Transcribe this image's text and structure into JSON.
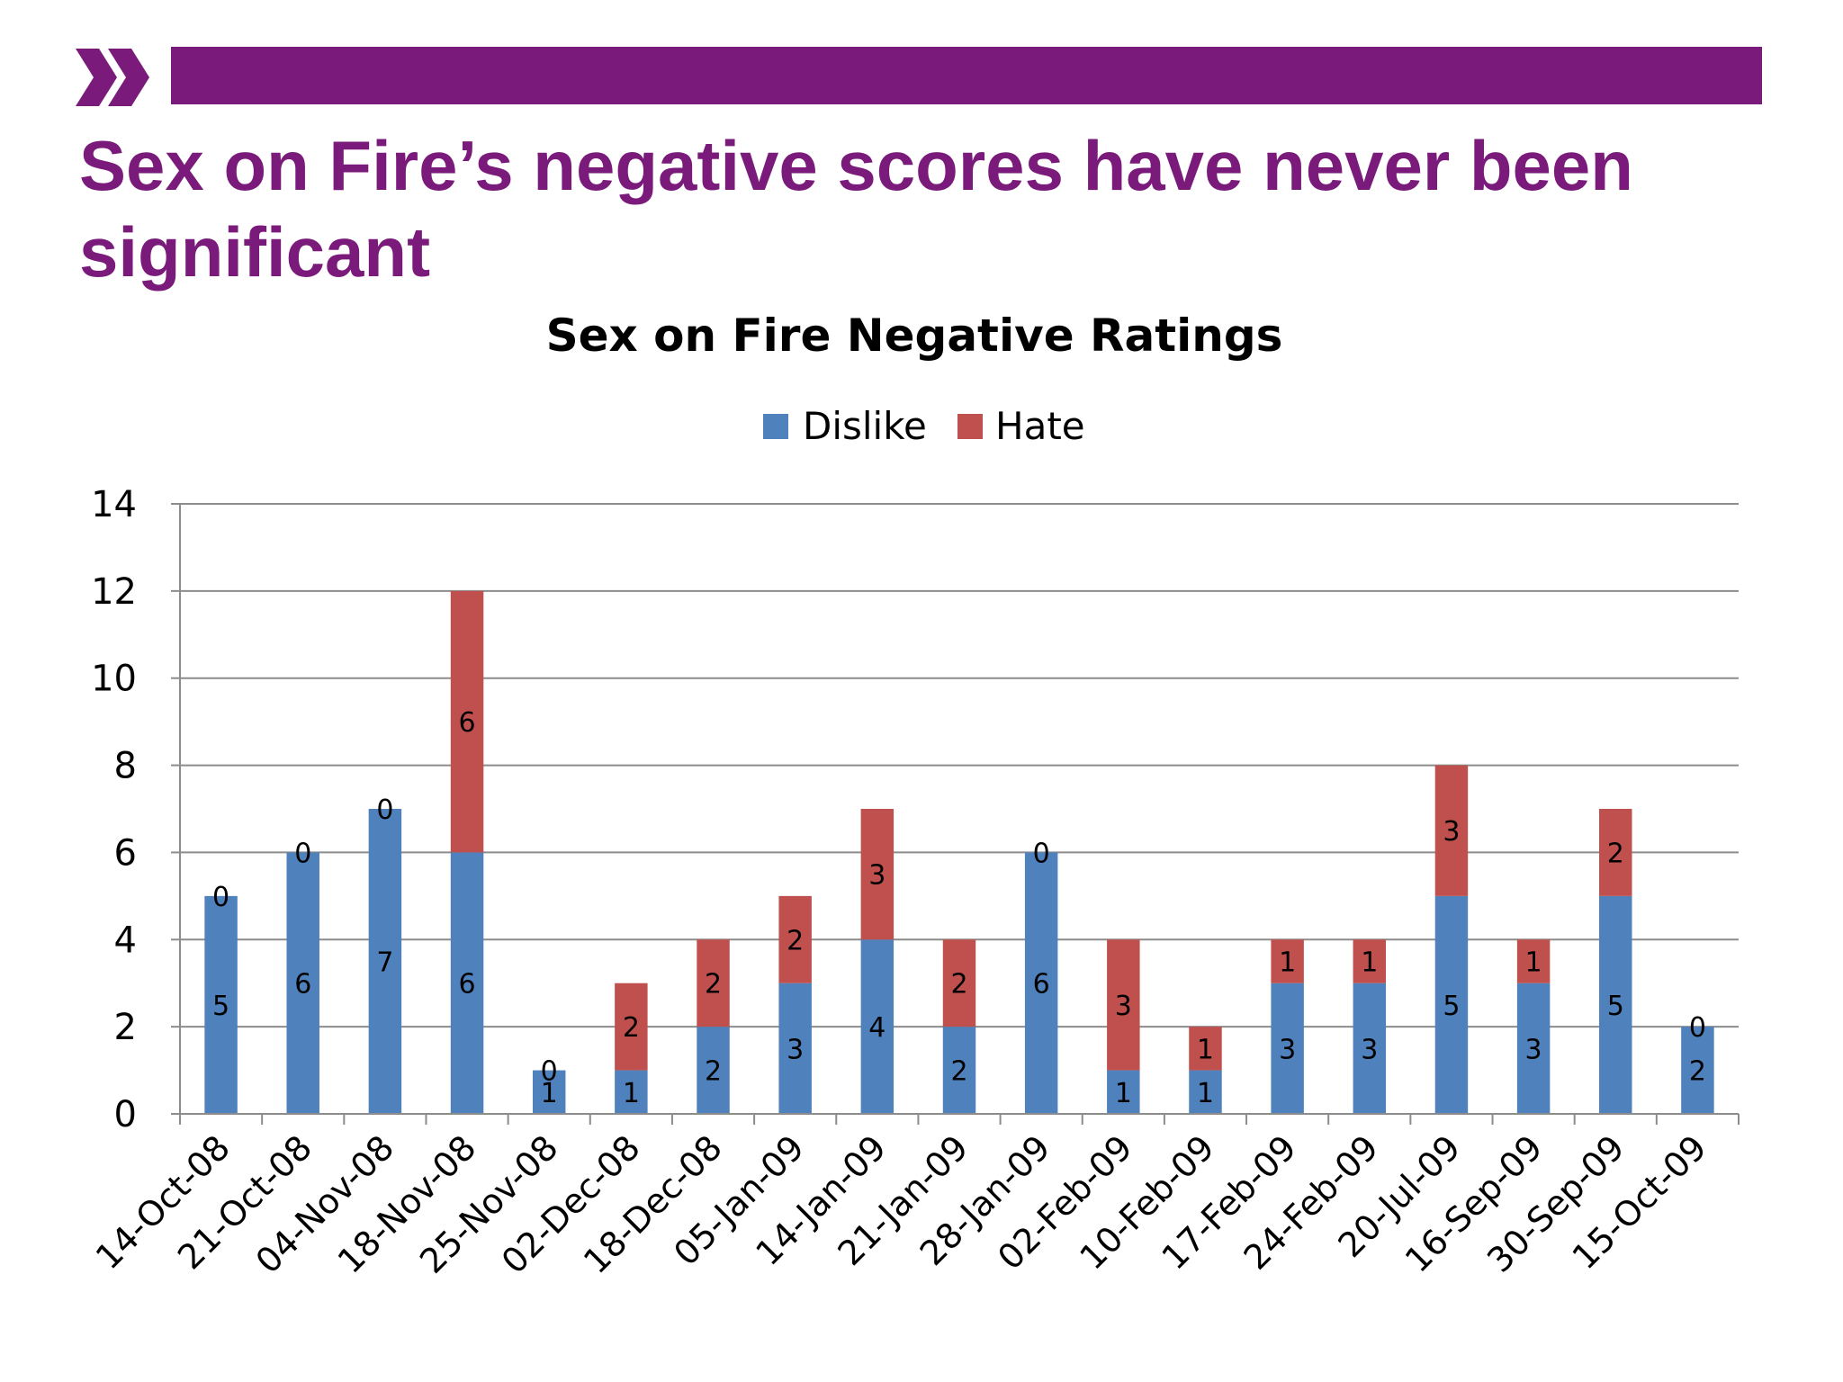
{
  "slide": {
    "title": "Sex on Fire’s negative scores have never been significant",
    "accent_color": "#7a1a7b"
  },
  "chart_data": {
    "type": "bar",
    "stacked": true,
    "title": "Sex on Fire Negative Ratings",
    "xlabel": "",
    "ylabel": "",
    "ylim": [
      0,
      14
    ],
    "yticks": [
      0,
      2,
      4,
      6,
      8,
      10,
      12,
      14
    ],
    "grid": true,
    "legend_position": "top",
    "categories": [
      "14-Oct-08",
      "21-Oct-08",
      "04-Nov-08",
      "18-Nov-08",
      "25-Nov-08",
      "02-Dec-08",
      "18-Dec-08",
      "05-Jan-09",
      "14-Jan-09",
      "21-Jan-09",
      "28-Jan-09",
      "02-Feb-09",
      "10-Feb-09",
      "17-Feb-09",
      "24-Feb-09",
      "20-Jul-09",
      "16-Sep-09",
      "30-Sep-09",
      "15-Oct-09"
    ],
    "series": [
      {
        "name": "Dislike",
        "color": "#4f81bd",
        "values": [
          5,
          6,
          7,
          6,
          1,
          1,
          2,
          3,
          4,
          2,
          6,
          1,
          1,
          3,
          3,
          5,
          3,
          5,
          2
        ]
      },
      {
        "name": "Hate",
        "color": "#c0504d",
        "values": [
          0,
          0,
          0,
          6,
          0,
          2,
          2,
          2,
          3,
          2,
          0,
          3,
          1,
          1,
          1,
          3,
          1,
          2,
          0
        ]
      }
    ]
  }
}
